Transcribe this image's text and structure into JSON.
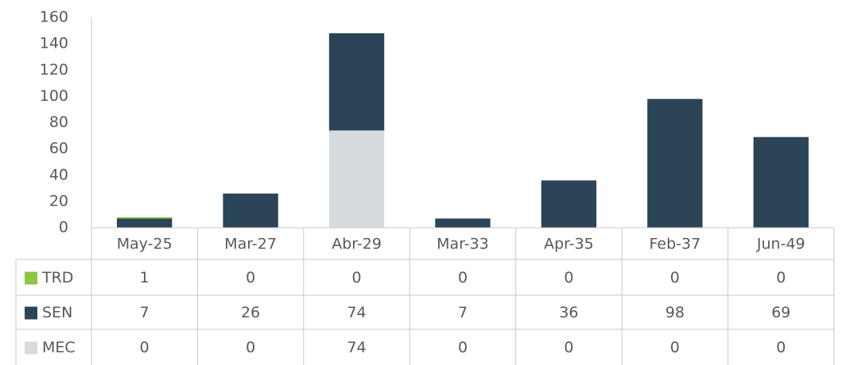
{
  "chart_data": {
    "type": "stacked_bar",
    "categories": [
      "May-25",
      "Mar-27",
      "Abr-29",
      "Mar-33",
      "Apr-35",
      "Feb-37",
      "Jun-49"
    ],
    "series": [
      {
        "name": "TRD",
        "color": "#8dc63f",
        "values": [
          1,
          0,
          0,
          0,
          0,
          0,
          0
        ]
      },
      {
        "name": "SEN",
        "color": "#2b4458",
        "values": [
          7,
          26,
          74,
          7,
          36,
          98,
          69
        ]
      },
      {
        "name": "MEC",
        "color": "#d8dbde",
        "values": [
          0,
          0,
          74,
          0,
          0,
          0,
          0
        ]
      }
    ],
    "ylim": [
      0,
      160
    ],
    "yticks": [
      0,
      20,
      40,
      60,
      80,
      100,
      120,
      140,
      160
    ]
  }
}
